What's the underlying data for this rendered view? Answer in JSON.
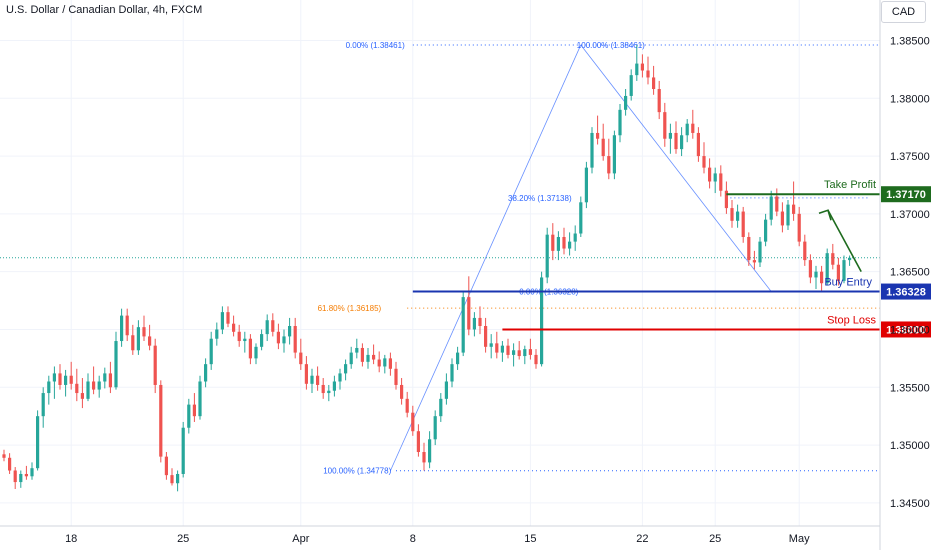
{
  "header": {
    "title": "U.S. Dollar / Canadian Dollar, 4h, FXCM",
    "currency": "CAD"
  },
  "colors": {
    "up": "#26a69a",
    "down": "#ef5350",
    "grid": "#f0f3fa",
    "axis_text": "#131722",
    "fib": "#2962ff",
    "fib618": "#f57c00",
    "take_profit": "#1e6b1e",
    "buy_entry": "#1a35b0",
    "stop_loss": "#e00000",
    "current": "#26a69a"
  },
  "chart_data": {
    "type": "candlestick",
    "title": "U.S. Dollar / Canadian Dollar, 4h, FXCM",
    "ylim": [
      1.343,
      1.3885
    ],
    "y_ticks": [
      "1.38500",
      "1.38000",
      "1.37500",
      "1.37000",
      "1.36500",
      "1.36000",
      "1.35500",
      "1.35000",
      "1.34500"
    ],
    "x_ticks": [
      "18",
      "25",
      "Apr",
      "8",
      "15",
      "22",
      "25",
      "May"
    ],
    "grid": true,
    "current_price": 1.3662,
    "candles": [
      [
        1.3492,
        1.3496,
        1.3486,
        1.3489
      ],
      [
        1.3489,
        1.3493,
        1.3475,
        1.3478
      ],
      [
        1.3478,
        1.3481,
        1.3462,
        1.3468
      ],
      [
        1.3468,
        1.3478,
        1.3463,
        1.3475
      ],
      [
        1.3475,
        1.3482,
        1.347,
        1.3473
      ],
      [
        1.3473,
        1.3485,
        1.347,
        1.348
      ],
      [
        1.348,
        1.353,
        1.3478,
        1.3525
      ],
      [
        1.3525,
        1.355,
        1.3515,
        1.3545
      ],
      [
        1.3545,
        1.356,
        1.3535,
        1.3555
      ],
      [
        1.3555,
        1.3568,
        1.354,
        1.3562
      ],
      [
        1.3562,
        1.357,
        1.3548,
        1.3552
      ],
      [
        1.3552,
        1.3565,
        1.3542,
        1.356
      ],
      [
        1.356,
        1.3572,
        1.3548,
        1.3553
      ],
      [
        1.3553,
        1.3566,
        1.3538,
        1.3545
      ],
      [
        1.3545,
        1.3558,
        1.3532,
        1.354
      ],
      [
        1.354,
        1.3562,
        1.3538,
        1.3555
      ],
      [
        1.3555,
        1.3568,
        1.3544,
        1.3548
      ],
      [
        1.3548,
        1.356,
        1.3541,
        1.3555
      ],
      [
        1.3555,
        1.3567,
        1.3549,
        1.3562
      ],
      [
        1.3562,
        1.3572,
        1.3545,
        1.355
      ],
      [
        1.355,
        1.3598,
        1.3548,
        1.359
      ],
      [
        1.359,
        1.3618,
        1.3585,
        1.3612
      ],
      [
        1.3612,
        1.3618,
        1.359,
        1.3595
      ],
      [
        1.3595,
        1.3604,
        1.3578,
        1.3582
      ],
      [
        1.3582,
        1.3608,
        1.3578,
        1.3602
      ],
      [
        1.3602,
        1.3612,
        1.359,
        1.3594
      ],
      [
        1.3594,
        1.3604,
        1.3582,
        1.3586
      ],
      [
        1.3586,
        1.3592,
        1.3545,
        1.3552
      ],
      [
        1.3552,
        1.3556,
        1.3485,
        1.349
      ],
      [
        1.349,
        1.3494,
        1.347,
        1.3474
      ],
      [
        1.3474,
        1.348,
        1.3465,
        1.3467
      ],
      [
        1.3467,
        1.3478,
        1.346,
        1.3475
      ],
      [
        1.3475,
        1.352,
        1.3472,
        1.3515
      ],
      [
        1.3515,
        1.354,
        1.351,
        1.3535
      ],
      [
        1.3535,
        1.3545,
        1.352,
        1.3525
      ],
      [
        1.3525,
        1.356,
        1.3522,
        1.3555
      ],
      [
        1.3555,
        1.3575,
        1.355,
        1.357
      ],
      [
        1.357,
        1.3598,
        1.3565,
        1.3592
      ],
      [
        1.3592,
        1.3606,
        1.3586,
        1.36
      ],
      [
        1.36,
        1.362,
        1.3596,
        1.3615
      ],
      [
        1.3615,
        1.362,
        1.3602,
        1.3605
      ],
      [
        1.3605,
        1.3612,
        1.3594,
        1.3598
      ],
      [
        1.3598,
        1.3604,
        1.3585,
        1.359
      ],
      [
        1.359,
        1.3598,
        1.358,
        1.3592
      ],
      [
        1.3592,
        1.3596,
        1.357,
        1.3575
      ],
      [
        1.3575,
        1.3588,
        1.357,
        1.3585
      ],
      [
        1.3585,
        1.36,
        1.3582,
        1.3596
      ],
      [
        1.3596,
        1.3613,
        1.359,
        1.3608
      ],
      [
        1.3608,
        1.3614,
        1.3594,
        1.3598
      ],
      [
        1.3598,
        1.3605,
        1.3583,
        1.3588
      ],
      [
        1.3588,
        1.36,
        1.358,
        1.3594
      ],
      [
        1.3594,
        1.361,
        1.3587,
        1.3603
      ],
      [
        1.3603,
        1.361,
        1.3575,
        1.358
      ],
      [
        1.358,
        1.3592,
        1.3565,
        1.357
      ],
      [
        1.357,
        1.3577,
        1.3548,
        1.3553
      ],
      [
        1.3553,
        1.3566,
        1.3545,
        1.356
      ],
      [
        1.356,
        1.3568,
        1.3547,
        1.3552
      ],
      [
        1.3552,
        1.3558,
        1.354,
        1.3545
      ],
      [
        1.3545,
        1.3552,
        1.3538,
        1.3547
      ],
      [
        1.3547,
        1.356,
        1.3542,
        1.3555
      ],
      [
        1.3555,
        1.3566,
        1.3548,
        1.3562
      ],
      [
        1.3562,
        1.3574,
        1.3556,
        1.357
      ],
      [
        1.357,
        1.3585,
        1.3566,
        1.358
      ],
      [
        1.358,
        1.3592,
        1.3575,
        1.3584
      ],
      [
        1.3584,
        1.3588,
        1.3568,
        1.3572
      ],
      [
        1.3572,
        1.3584,
        1.3566,
        1.3578
      ],
      [
        1.3578,
        1.3587,
        1.357,
        1.3574
      ],
      [
        1.3574,
        1.3581,
        1.3563,
        1.3568
      ],
      [
        1.3568,
        1.3578,
        1.3562,
        1.3575
      ],
      [
        1.3575,
        1.358,
        1.356,
        1.3566
      ],
      [
        1.3566,
        1.3572,
        1.3548,
        1.3552
      ],
      [
        1.3552,
        1.3558,
        1.3535,
        1.354
      ],
      [
        1.354,
        1.3546,
        1.3524,
        1.3528
      ],
      [
        1.3528,
        1.3534,
        1.3508,
        1.3512
      ],
      [
        1.3512,
        1.3518,
        1.349,
        1.3494
      ],
      [
        1.3494,
        1.3502,
        1.3478,
        1.3485
      ],
      [
        1.3485,
        1.3512,
        1.348,
        1.3505
      ],
      [
        1.3505,
        1.353,
        1.35,
        1.3525
      ],
      [
        1.3525,
        1.3545,
        1.352,
        1.354
      ],
      [
        1.354,
        1.3562,
        1.3535,
        1.3555
      ],
      [
        1.3555,
        1.3575,
        1.355,
        1.357
      ],
      [
        1.357,
        1.3585,
        1.3565,
        1.358
      ],
      [
        1.358,
        1.3632,
        1.3577,
        1.3628
      ],
      [
        1.3628,
        1.3646,
        1.3595,
        1.36
      ],
      [
        1.36,
        1.3615,
        1.3594,
        1.361
      ],
      [
        1.361,
        1.362,
        1.3596,
        1.3603
      ],
      [
        1.3603,
        1.361,
        1.358,
        1.3585
      ],
      [
        1.3585,
        1.3596,
        1.3575,
        1.3588
      ],
      [
        1.3588,
        1.3598,
        1.3575,
        1.358
      ],
      [
        1.358,
        1.359,
        1.3572,
        1.3586
      ],
      [
        1.3586,
        1.3592,
        1.3575,
        1.3578
      ],
      [
        1.3578,
        1.3588,
        1.3568,
        1.3582
      ],
      [
        1.3582,
        1.359,
        1.3574,
        1.3577
      ],
      [
        1.3577,
        1.3586,
        1.357,
        1.3583
      ],
      [
        1.3583,
        1.3592,
        1.3574,
        1.3578
      ],
      [
        1.3578,
        1.3583,
        1.3566,
        1.357
      ],
      [
        1.357,
        1.365,
        1.3568,
        1.3645
      ],
      [
        1.3645,
        1.3688,
        1.364,
        1.3682
      ],
      [
        1.3682,
        1.3692,
        1.366,
        1.3668
      ],
      [
        1.3668,
        1.3685,
        1.366,
        1.368
      ],
      [
        1.368,
        1.3688,
        1.3665,
        1.367
      ],
      [
        1.367,
        1.3684,
        1.3664,
        1.3676
      ],
      [
        1.3676,
        1.369,
        1.3668,
        1.3683
      ],
      [
        1.3683,
        1.3715,
        1.368,
        1.371
      ],
      [
        1.371,
        1.3745,
        1.3705,
        1.374
      ],
      [
        1.374,
        1.3775,
        1.3735,
        1.377
      ],
      [
        1.377,
        1.3785,
        1.376,
        1.3765
      ],
      [
        1.3765,
        1.3778,
        1.3746,
        1.375
      ],
      [
        1.375,
        1.3765,
        1.373,
        1.3735
      ],
      [
        1.3735,
        1.3772,
        1.373,
        1.3768
      ],
      [
        1.3768,
        1.3795,
        1.3762,
        1.379
      ],
      [
        1.379,
        1.3808,
        1.3785,
        1.3802
      ],
      [
        1.3802,
        1.3825,
        1.3798,
        1.382
      ],
      [
        1.382,
        1.3846,
        1.3815,
        1.383
      ],
      [
        1.383,
        1.3838,
        1.3818,
        1.3824
      ],
      [
        1.3824,
        1.3836,
        1.3812,
        1.3818
      ],
      [
        1.3818,
        1.3828,
        1.3803,
        1.3808
      ],
      [
        1.3808,
        1.3815,
        1.3782,
        1.3788
      ],
      [
        1.3788,
        1.3796,
        1.3758,
        1.3765
      ],
      [
        1.3765,
        1.3778,
        1.3752,
        1.377
      ],
      [
        1.377,
        1.378,
        1.3752,
        1.3756
      ],
      [
        1.3756,
        1.3775,
        1.375,
        1.3768
      ],
      [
        1.3768,
        1.3782,
        1.3762,
        1.3778
      ],
      [
        1.3778,
        1.379,
        1.3765,
        1.377
      ],
      [
        1.377,
        1.3775,
        1.3745,
        1.375
      ],
      [
        1.375,
        1.3762,
        1.3735,
        1.374
      ],
      [
        1.374,
        1.3748,
        1.3722,
        1.3728
      ],
      [
        1.3728,
        1.374,
        1.3718,
        1.3735
      ],
      [
        1.3735,
        1.3742,
        1.3715,
        1.372
      ],
      [
        1.372,
        1.3728,
        1.37,
        1.3705
      ],
      [
        1.3705,
        1.3712,
        1.3688,
        1.3694
      ],
      [
        1.3694,
        1.3708,
        1.3688,
        1.3702
      ],
      [
        1.3702,
        1.3706,
        1.3675,
        1.368
      ],
      [
        1.368,
        1.3684,
        1.3655,
        1.366
      ],
      [
        1.366,
        1.3668,
        1.3652,
        1.3658
      ],
      [
        1.3658,
        1.368,
        1.3654,
        1.3676
      ],
      [
        1.3676,
        1.37,
        1.3672,
        1.3695
      ],
      [
        1.3695,
        1.372,
        1.369,
        1.3715
      ],
      [
        1.3715,
        1.3722,
        1.3698,
        1.3702
      ],
      [
        1.3702,
        1.371,
        1.3684,
        1.369
      ],
      [
        1.369,
        1.3712,
        1.3686,
        1.3708
      ],
      [
        1.3708,
        1.3728,
        1.3694,
        1.37
      ],
      [
        1.37,
        1.3706,
        1.3672,
        1.3676
      ],
      [
        1.3676,
        1.3682,
        1.3655,
        1.366
      ],
      [
        1.366,
        1.3665,
        1.364,
        1.3645
      ],
      [
        1.3645,
        1.3655,
        1.3635,
        1.365
      ],
      [
        1.365,
        1.3655,
        1.3633,
        1.364
      ],
      [
        1.364,
        1.367,
        1.3638,
        1.3666
      ],
      [
        1.3666,
        1.3674,
        1.3652,
        1.3656
      ],
      [
        1.3656,
        1.3662,
        1.3638,
        1.3642
      ],
      [
        1.3642,
        1.3664,
        1.364,
        1.366
      ],
      [
        1.366,
        1.3664,
        1.3655,
        1.3662
      ]
    ],
    "fibonacci": [
      {
        "label": "0.00% (1.38461)",
        "price": 1.38461
      },
      {
        "label": "100.00% (1.38461)",
        "price": 1.38461
      },
      {
        "label": "38.20% (1.37138)",
        "price": 1.37138
      },
      {
        "label": "0.00% (1.36328)",
        "price": 1.36328
      },
      {
        "label": "61.80% (1.36185)",
        "price": 1.36185
      },
      {
        "label": "100.00% (1.34778)",
        "price": 1.34778
      }
    ],
    "levels": [
      {
        "name": "Take Profit",
        "price": 1.3717,
        "price_label": "1.37170"
      },
      {
        "name": "Buy Entry",
        "price": 1.36328,
        "price_label": "1.36328"
      },
      {
        "name": "Stop Loss",
        "price": 1.36,
        "price_label": "1.36000"
      }
    ]
  }
}
